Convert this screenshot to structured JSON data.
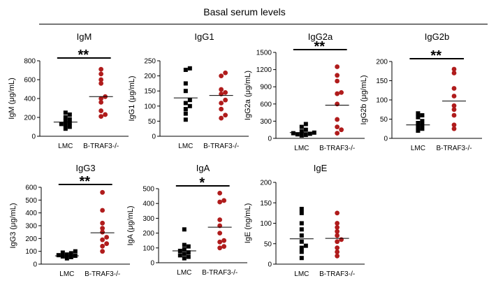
{
  "page_title": "Basal serum levels",
  "colors": {
    "lmc": "#000000",
    "btraf3": "#b01c1c",
    "axis": "#000000"
  },
  "chart_data": [
    {
      "type": "scatter",
      "title": "IgM",
      "ylabel": "IgM (μg/mL)",
      "categories": [
        "LMC",
        "B-TRAF3-/-"
      ],
      "ylim": [
        0,
        800
      ],
      "yticks": [
        0,
        200,
        400,
        600,
        800
      ],
      "significance": "**",
      "series": [
        {
          "name": "LMC",
          "values": [
            80,
            100,
            120,
            130,
            140,
            160,
            180,
            200,
            230,
            250
          ],
          "mean": 150
        },
        {
          "name": "B-TRAF3-/-",
          "values": [
            210,
            230,
            270,
            360,
            400,
            420,
            560,
            600,
            660,
            710
          ],
          "mean": 420
        }
      ]
    },
    {
      "type": "scatter",
      "title": "IgG1",
      "ylabel": "IgG1 (μg/mL)",
      "categories": [
        "LMC",
        "B-TRAF3-/-"
      ],
      "ylim": [
        0,
        250
      ],
      "yticks": [
        0,
        50,
        100,
        150,
        200,
        250
      ],
      "significance": "",
      "series": [
        {
          "name": "LMC",
          "values": [
            55,
            75,
            90,
            100,
            110,
            120,
            150,
            175,
            220,
            225
          ],
          "mean": 127
        },
        {
          "name": "B-TRAF3-/-",
          "values": [
            60,
            70,
            90,
            110,
            120,
            140,
            145,
            155,
            200,
            210
          ],
          "mean": 135
        }
      ]
    },
    {
      "type": "scatter",
      "title": "IgG2a",
      "ylabel": "IgG2a (μg/mL)",
      "categories": [
        "LMC",
        "B-TRAF3-/-"
      ],
      "ylim": [
        0,
        1500
      ],
      "yticks": [
        0,
        300,
        600,
        900,
        1200,
        1500
      ],
      "significance": "**",
      "series": [
        {
          "name": "LMC",
          "values": [
            50,
            60,
            70,
            80,
            90,
            100,
            120,
            150,
            200,
            250
          ],
          "mean": 100
        },
        {
          "name": "B-TRAF3-/-",
          "values": [
            90,
            150,
            200,
            330,
            600,
            780,
            800,
            1000,
            1100,
            1250
          ],
          "mean": 580
        }
      ]
    },
    {
      "type": "scatter",
      "title": "IgG2b",
      "ylabel": "IgG2b (μg/mL)",
      "categories": [
        "LMC",
        "B-TRAF3-/-"
      ],
      "ylim": [
        0,
        200
      ],
      "yticks": [
        0,
        50,
        100,
        150,
        200
      ],
      "significance": "**",
      "series": [
        {
          "name": "LMC",
          "values": [
            20,
            25,
            30,
            35,
            40,
            45,
            55,
            60,
            65
          ],
          "mean": 35
        },
        {
          "name": "B-TRAF3-/-",
          "values": [
            25,
            35,
            60,
            75,
            85,
            110,
            130,
            170,
            180
          ],
          "mean": 97
        }
      ]
    },
    {
      "type": "scatter",
      "title": "IgG3",
      "ylabel": "IgG3 (μg/mL)",
      "categories": [
        "LMC",
        "B-TRAF3-/-"
      ],
      "ylim": [
        0,
        600
      ],
      "yticks": [
        0,
        100,
        200,
        300,
        400,
        500,
        600
      ],
      "significance": "**",
      "series": [
        {
          "name": "LMC",
          "values": [
            45,
            55,
            60,
            65,
            70,
            75,
            85,
            90,
            100
          ],
          "mean": 65
        },
        {
          "name": "B-TRAF3-/-",
          "values": [
            100,
            140,
            160,
            190,
            210,
            250,
            280,
            320,
            420,
            560
          ],
          "mean": 245
        }
      ]
    },
    {
      "type": "scatter",
      "title": "IgA",
      "ylabel": "IgA (μg/mL)",
      "categories": [
        "LMC",
        "B-TRAF3-/-"
      ],
      "ylim": [
        0,
        500
      ],
      "yticks": [
        0,
        100,
        200,
        300,
        400,
        500
      ],
      "significance": "*",
      "series": [
        {
          "name": "LMC",
          "values": [
            30,
            40,
            50,
            60,
            70,
            80,
            90,
            110,
            120,
            225
          ],
          "mean": 80
        },
        {
          "name": "B-TRAF3-/-",
          "values": [
            100,
            110,
            140,
            150,
            200,
            250,
            290,
            410,
            420,
            470
          ],
          "mean": 240
        }
      ]
    },
    {
      "type": "scatter",
      "title": "IgE",
      "ylabel": "IgE (ng/mL)",
      "categories": [
        "LMC",
        "B-TRAF3-/-"
      ],
      "ylim": [
        0,
        200
      ],
      "yticks": [
        0,
        50,
        100,
        150,
        200
      ],
      "significance": "",
      "series": [
        {
          "name": "LMC",
          "values": [
            15,
            30,
            40,
            45,
            55,
            70,
            85,
            100,
            125,
            135
          ],
          "mean": 62
        },
        {
          "name": "B-TRAF3-/-",
          "values": [
            20,
            30,
            40,
            55,
            60,
            70,
            80,
            90,
            100,
            125
          ],
          "mean": 63
        }
      ]
    }
  ]
}
